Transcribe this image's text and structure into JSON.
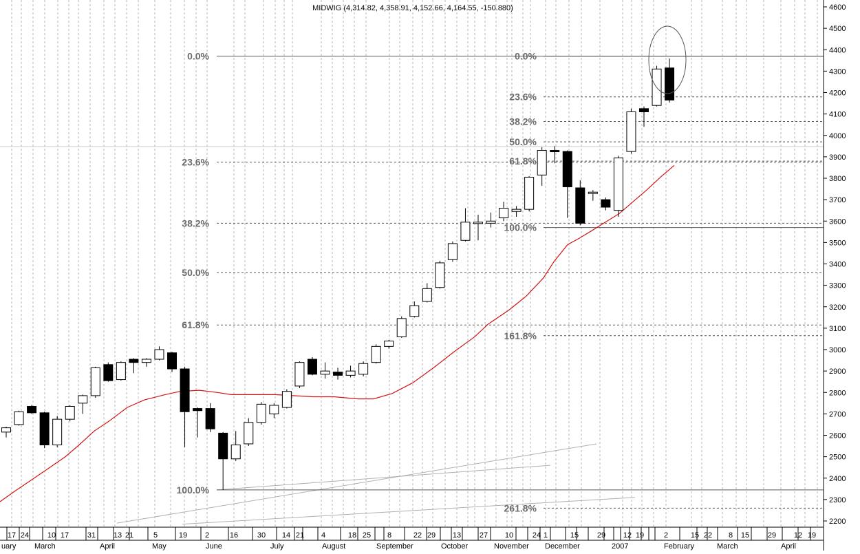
{
  "chart_data": {
    "type": "candlestick",
    "title": "MIDWIG (4,314.82, 4,358.91, 4,152.66, 4,164.55, -150.880)",
    "colors": {
      "up_fill": "#ffffff",
      "down_fill": "#000000",
      "candle_outline": "#000000",
      "moving_average": "#d21414",
      "fib_lines": "#555555",
      "fib_labels": "#6a6a6a",
      "grid": "#b4b4b4",
      "trend_lines": "#b0b0b0",
      "current_line": "#c8c8c8"
    },
    "y_axis": {
      "min": 2150,
      "max": 4640,
      "ticks": [
        4600,
        4500,
        4400,
        4300,
        4200,
        4100,
        4000,
        3900,
        3800,
        3700,
        3600,
        3500,
        3400,
        3300,
        3200,
        3100,
        3000,
        2900,
        2800,
        2700,
        2600,
        2500,
        2400,
        2300,
        2200
      ]
    },
    "x_axis": {
      "tick_labels": [
        "17",
        "24",
        "10",
        "17",
        "31",
        "13",
        "21",
        "5",
        "19",
        "2",
        "16",
        "30",
        "14",
        "21",
        "4",
        "18",
        "25",
        "8",
        "22",
        "29",
        "13",
        "27",
        "10",
        "24",
        "1",
        "15",
        "29",
        "12",
        "19",
        "2",
        "15",
        "22",
        "8",
        "15",
        "29",
        "12",
        "19"
      ],
      "month_labels": [
        "uary",
        "March",
        "April",
        "May",
        "June",
        "July",
        "August",
        "September",
        "October",
        "November",
        "December",
        "2007",
        "February",
        "March",
        "April"
      ]
    },
    "candles": [
      {
        "o": 2615,
        "h": 2640,
        "l": 2590,
        "c": 2635
      },
      {
        "o": 2650,
        "h": 2715,
        "l": 2645,
        "c": 2710
      },
      {
        "o": 2735,
        "h": 2742,
        "l": 2700,
        "c": 2705
      },
      {
        "o": 2705,
        "h": 2710,
        "l": 2540,
        "c": 2555
      },
      {
        "o": 2555,
        "h": 2690,
        "l": 2545,
        "c": 2675
      },
      {
        "o": 2675,
        "h": 2740,
        "l": 2665,
        "c": 2735
      },
      {
        "o": 2750,
        "h": 2790,
        "l": 2700,
        "c": 2785
      },
      {
        "o": 2785,
        "h": 2920,
        "l": 2775,
        "c": 2915
      },
      {
        "o": 2930,
        "h": 2940,
        "l": 2850,
        "c": 2855
      },
      {
        "o": 2860,
        "h": 2945,
        "l": 2855,
        "c": 2940
      },
      {
        "o": 2955,
        "h": 2960,
        "l": 2890,
        "c": 2940
      },
      {
        "o": 2940,
        "h": 2960,
        "l": 2920,
        "c": 2955
      },
      {
        "o": 2955,
        "h": 3015,
        "l": 2950,
        "c": 3000
      },
      {
        "o": 2985,
        "h": 2990,
        "l": 2895,
        "c": 2910
      },
      {
        "o": 2910,
        "h": 2920,
        "l": 2545,
        "c": 2710
      },
      {
        "o": 2725,
        "h": 2730,
        "l": 2590,
        "c": 2715
      },
      {
        "o": 2725,
        "h": 2750,
        "l": 2615,
        "c": 2630
      },
      {
        "o": 2610,
        "h": 2615,
        "l": 2345,
        "c": 2490
      },
      {
        "o": 2490,
        "h": 2620,
        "l": 2480,
        "c": 2555
      },
      {
        "o": 2560,
        "h": 2680,
        "l": 2550,
        "c": 2660
      },
      {
        "o": 2660,
        "h": 2755,
        "l": 2650,
        "c": 2745
      },
      {
        "o": 2700,
        "h": 2750,
        "l": 2680,
        "c": 2740
      },
      {
        "o": 2730,
        "h": 2815,
        "l": 2725,
        "c": 2805
      },
      {
        "o": 2830,
        "h": 2945,
        "l": 2820,
        "c": 2940
      },
      {
        "o": 2955,
        "h": 2965,
        "l": 2880,
        "c": 2885
      },
      {
        "o": 2885,
        "h": 2940,
        "l": 2865,
        "c": 2900
      },
      {
        "o": 2895,
        "h": 2915,
        "l": 2860,
        "c": 2880
      },
      {
        "o": 2880,
        "h": 2925,
        "l": 2870,
        "c": 2900
      },
      {
        "o": 2885,
        "h": 2945,
        "l": 2875,
        "c": 2935
      },
      {
        "o": 2940,
        "h": 3025,
        "l": 2935,
        "c": 3015
      },
      {
        "o": 3015,
        "h": 3045,
        "l": 3005,
        "c": 3040
      },
      {
        "o": 3060,
        "h": 3155,
        "l": 3055,
        "c": 3145
      },
      {
        "o": 3155,
        "h": 3225,
        "l": 3150,
        "c": 3205
      },
      {
        "o": 3225,
        "h": 3310,
        "l": 3220,
        "c": 3285
      },
      {
        "o": 3290,
        "h": 3415,
        "l": 3285,
        "c": 3405
      },
      {
        "o": 3420,
        "h": 3505,
        "l": 3410,
        "c": 3495
      },
      {
        "o": 3510,
        "h": 3660,
        "l": 3505,
        "c": 3595
      },
      {
        "o": 3590,
        "h": 3630,
        "l": 3510,
        "c": 3595
      },
      {
        "o": 3590,
        "h": 3640,
        "l": 3570,
        "c": 3600
      },
      {
        "o": 3615,
        "h": 3690,
        "l": 3600,
        "c": 3660
      },
      {
        "o": 3645,
        "h": 3670,
        "l": 3620,
        "c": 3655
      },
      {
        "o": 3655,
        "h": 3810,
        "l": 3645,
        "c": 3805
      },
      {
        "o": 3815,
        "h": 3945,
        "l": 3765,
        "c": 3930
      },
      {
        "o": 3930,
        "h": 3950,
        "l": 3870,
        "c": 3925
      },
      {
        "o": 3925,
        "h": 3930,
        "l": 3615,
        "c": 3760
      },
      {
        "o": 3755,
        "h": 3790,
        "l": 3580,
        "c": 3590
      },
      {
        "o": 3735,
        "h": 3745,
        "l": 3695,
        "c": 3735
      },
      {
        "o": 3700,
        "h": 3710,
        "l": 3650,
        "c": 3665
      },
      {
        "o": 3650,
        "h": 3905,
        "l": 3620,
        "c": 3895
      },
      {
        "o": 3925,
        "h": 4125,
        "l": 3915,
        "c": 4110
      },
      {
        "o": 4125,
        "h": 4135,
        "l": 4040,
        "c": 4110
      },
      {
        "o": 4140,
        "h": 4325,
        "l": 4135,
        "c": 4310
      },
      {
        "o": 4315,
        "h": 4359,
        "l": 4153,
        "c": 4165
      }
    ],
    "moving_average": [
      [
        0,
        2290
      ],
      [
        22,
        2340
      ],
      [
        45,
        2390
      ],
      [
        68,
        2440
      ],
      [
        95,
        2500
      ],
      [
        115,
        2555
      ],
      [
        137,
        2620
      ],
      [
        158,
        2665
      ],
      [
        185,
        2730
      ],
      [
        210,
        2765
      ],
      [
        240,
        2790
      ],
      [
        262,
        2805
      ],
      [
        290,
        2810
      ],
      [
        316,
        2800
      ],
      [
        336,
        2790
      ],
      [
        360,
        2790
      ],
      [
        380,
        2790
      ],
      [
        400,
        2790
      ],
      [
        425,
        2785
      ],
      [
        455,
        2780
      ],
      [
        485,
        2780
      ],
      [
        520,
        2770
      ],
      [
        543,
        2770
      ],
      [
        570,
        2795
      ],
      [
        600,
        2845
      ],
      [
        630,
        2915
      ],
      [
        660,
        2990
      ],
      [
        690,
        3060
      ],
      [
        710,
        3120
      ],
      [
        740,
        3185
      ],
      [
        765,
        3250
      ],
      [
        790,
        3335
      ],
      [
        805,
        3410
      ],
      [
        825,
        3490
      ],
      [
        842,
        3520
      ],
      [
        860,
        3555
      ],
      [
        880,
        3595
      ],
      [
        900,
        3635
      ],
      [
        920,
        3690
      ],
      [
        940,
        3745
      ],
      [
        960,
        3805
      ],
      [
        980,
        3860
      ]
    ],
    "fib_levels_left": [
      {
        "label": "0.0%",
        "y": 4370
      },
      {
        "label": "23.6%",
        "y": 3875
      },
      {
        "label": "38.2%",
        "y": 3590
      },
      {
        "label": "50.0%",
        "y": 3360
      },
      {
        "label": "61.8%",
        "y": 3115
      },
      {
        "label": "100.0%",
        "y": 2345
      }
    ],
    "fib_levels_right": [
      {
        "label": "0.0%",
        "y": 4370
      },
      {
        "label": "23.6%",
        "y": 4180
      },
      {
        "label": "38.2%",
        "y": 4065
      },
      {
        "label": "50.0%",
        "y": 3970
      },
      {
        "label": "61.8%",
        "y": 3880
      },
      {
        "label": "100.0%",
        "y": 3570
      },
      {
        "label": "161.8%",
        "y": 3065
      },
      {
        "label": "261.8%",
        "y": 2260
      }
    ]
  }
}
